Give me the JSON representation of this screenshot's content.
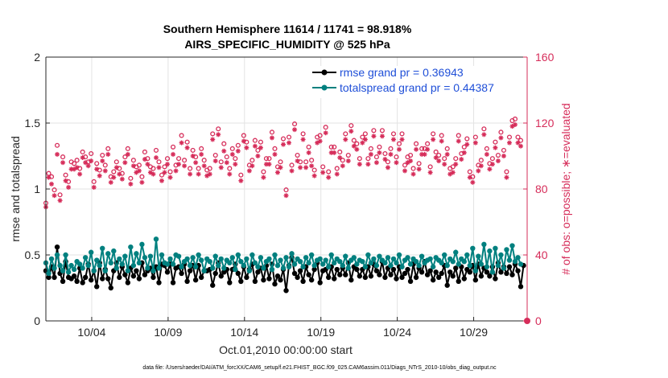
{
  "chart_data": {
    "type": "line",
    "title_line1": "Southern Hemisphere 11614 / 11741 = 98.918%",
    "title_line2": "AIRS_SPECIFIC_HUMIDITY @ 525 hPa",
    "xlabel": "Oct.01,2010 00:00:00 start",
    "ylabel_left": "rmse and totalspread",
    "ylabel_right": "# of obs: o=possible; ∗=evaluated",
    "xlim": [
      1,
      32.5
    ],
    "ylim_left": [
      0,
      2
    ],
    "ylim_right": [
      0,
      160
    ],
    "x_ticks": [
      4,
      9,
      14,
      19,
      24,
      29
    ],
    "x_tick_labels": [
      "10/04",
      "10/09",
      "10/14",
      "10/19",
      "10/24",
      "10/29"
    ],
    "y_ticks_left": [
      0,
      0.5,
      1,
      1.5,
      2
    ],
    "y_tick_labels_left": [
      "0",
      "0.5",
      "1",
      "1.5",
      "2"
    ],
    "y_ticks_right": [
      0,
      40,
      80,
      120,
      160
    ],
    "y_tick_labels_right": [
      "0",
      "40",
      "80",
      "120",
      "160"
    ],
    "grid": true,
    "legend_position": "top-right",
    "colors": {
      "rmse": "#000000",
      "spread": "#00807f",
      "obs": "#d62d5a",
      "legend_text": "#1f4fd8",
      "grid": "#e3e3e3"
    },
    "series": [
      {
        "name": "rmse grand pr = 0.36943",
        "axis": "left",
        "values": [
          0.38,
          0.33,
          0.41,
          0.33,
          0.56,
          0.36,
          0.3,
          0.45,
          0.33,
          0.32,
          0.34,
          0.3,
          0.4,
          0.29,
          0.33,
          0.43,
          0.31,
          0.38,
          0.26,
          0.44,
          0.32,
          0.39,
          0.32,
          0.25,
          0.38,
          0.44,
          0.33,
          0.41,
          0.35,
          0.29,
          0.4,
          0.34,
          0.38,
          0.32,
          0.44,
          0.35,
          0.38,
          0.4,
          0.33,
          0.41,
          0.29,
          0.43,
          0.42,
          0.37,
          0.43,
          0.29,
          0.4,
          0.41,
          0.36,
          0.43,
          0.3,
          0.38,
          0.42,
          0.31,
          0.42,
          0.33,
          0.38,
          0.38,
          0.39,
          0.27,
          0.36,
          0.44,
          0.34,
          0.37,
          0.39,
          0.29,
          0.39,
          0.43,
          0.36,
          0.3,
          0.41,
          0.33,
          0.39,
          0.43,
          0.3,
          0.37,
          0.4,
          0.31,
          0.42,
          0.32,
          0.43,
          0.28,
          0.34,
          0.31,
          0.39,
          0.23,
          0.42,
          0.48,
          0.36,
          0.33,
          0.38,
          0.3,
          0.41,
          0.35,
          0.31,
          0.39,
          0.44,
          0.29,
          0.38,
          0.39,
          0.33,
          0.41,
          0.32,
          0.39,
          0.35,
          0.4,
          0.35,
          0.44,
          0.31,
          0.41,
          0.39,
          0.34,
          0.39,
          0.33,
          0.41,
          0.34,
          0.43,
          0.38,
          0.35,
          0.45,
          0.33,
          0.4,
          0.35,
          0.39,
          0.32,
          0.41,
          0.33,
          0.36,
          0.39,
          0.3,
          0.43,
          0.33,
          0.4,
          0.37,
          0.45,
          0.35,
          0.38,
          0.31,
          0.37,
          0.33,
          0.36,
          0.42,
          0.27,
          0.37,
          0.34,
          0.4,
          0.3,
          0.41,
          0.32,
          0.39,
          0.37,
          0.42,
          0.31,
          0.43,
          0.34,
          0.4,
          0.37,
          0.34,
          0.41,
          0.32,
          0.44,
          0.37,
          0.41,
          0.36,
          0.41,
          0.35,
          0.43,
          0.38,
          0.26,
          0.42
        ]
      },
      {
        "name": "totalspread grand pr = 0.44387",
        "axis": "left",
        "values": [
          0.44,
          0.36,
          0.47,
          0.4,
          0.5,
          0.42,
          0.38,
          0.5,
          0.37,
          0.42,
          0.39,
          0.45,
          0.43,
          0.4,
          0.48,
          0.42,
          0.52,
          0.38,
          0.46,
          0.42,
          0.55,
          0.38,
          0.51,
          0.44,
          0.53,
          0.4,
          0.47,
          0.43,
          0.49,
          0.38,
          0.56,
          0.42,
          0.51,
          0.44,
          0.58,
          0.48,
          0.4,
          0.49,
          0.38,
          0.62,
          0.4,
          0.5,
          0.44,
          0.43,
          0.47,
          0.43,
          0.5,
          0.49,
          0.41,
          0.45,
          0.47,
          0.42,
          0.48,
          0.41,
          0.5,
          0.46,
          0.38,
          0.47,
          0.45,
          0.4,
          0.49,
          0.42,
          0.47,
          0.4,
          0.46,
          0.44,
          0.48,
          0.39,
          0.5,
          0.45,
          0.42,
          0.47,
          0.38,
          0.5,
          0.44,
          0.41,
          0.48,
          0.4,
          0.45,
          0.47,
          0.39,
          0.5,
          0.42,
          0.46,
          0.4,
          0.48,
          0.41,
          0.51,
          0.43,
          0.47,
          0.45,
          0.41,
          0.48,
          0.44,
          0.5,
          0.42,
          0.46,
          0.47,
          0.43,
          0.46,
          0.41,
          0.5,
          0.44,
          0.47,
          0.45,
          0.42,
          0.49,
          0.4,
          0.46,
          0.48,
          0.43,
          0.46,
          0.45,
          0.41,
          0.5,
          0.44,
          0.47,
          0.42,
          0.49,
          0.46,
          0.44,
          0.48,
          0.42,
          0.47,
          0.44,
          0.5,
          0.41,
          0.46,
          0.48,
          0.43,
          0.47,
          0.45,
          0.42,
          0.49,
          0.44,
          0.46,
          0.47,
          0.41,
          0.48,
          0.46,
          0.44,
          0.5,
          0.42,
          0.47,
          0.45,
          0.52,
          0.43,
          0.47,
          0.45,
          0.5,
          0.42,
          0.55,
          0.38,
          0.49,
          0.43,
          0.58,
          0.41,
          0.53,
          0.37,
          0.55,
          0.42,
          0.5,
          0.4,
          0.54,
          0.46,
          0.57,
          0.45,
          0.48,
          0.43
        ]
      },
      {
        "name": "obs possible (o)",
        "axis": "right",
        "values": [
          70,
          88,
          86,
          78,
          105,
          75,
          98,
          87,
          83,
          95,
          94,
          96,
          91,
          101,
          98,
          95,
          100,
          83,
          94,
          90,
          99,
          93,
          103,
          86,
          89,
          95,
          91,
          88,
          98,
          103,
          85,
          96,
          92,
          93,
          86,
          101,
          97,
          92,
          91,
          102,
          95,
          87,
          92,
          97,
          89,
          104,
          93,
          97,
          111,
          96,
          107,
          91,
          102,
          98,
          91,
          103,
          96,
          90,
          91,
          112,
          99,
          115,
          95,
          106,
          98,
          91,
          103,
          97,
          105,
          87,
          111,
          107,
          93,
          96,
          108,
          102,
          107,
          89,
          97,
          97,
          113,
          103,
          92,
          95,
          109,
          78,
          110,
          93,
          118,
          99,
          95,
          112,
          95,
          104,
          96,
          90,
          110,
          111,
          92,
          116,
          89,
          104,
          104,
          91,
          101,
          96,
          112,
          99,
          117,
          108,
          106,
          97,
          110,
          112,
          97,
          103,
          114,
          98,
          104,
          114,
          100,
          95,
          103,
          112,
          98,
          106,
          112,
          93,
          98,
          99,
          91,
          106,
          94,
          103,
          103,
          106,
          92,
          112,
          101,
          99,
          111,
          97,
          103,
          91,
          92,
          97,
          111,
          100,
          104,
          109,
          89,
          86,
          110,
          93,
          96,
          115,
          103,
          94,
          97,
          107,
          99,
          113,
          102,
          89,
          110,
          120,
          121,
          110,
          108
        ]
      },
      {
        "name": "obs evaluated (*)",
        "axis": "right",
        "values": [
          70,
          88,
          84,
          77,
          102,
          74,
          97,
          86,
          82,
          93,
          93,
          94,
          90,
          100,
          97,
          95,
          98,
          82,
          93,
          89,
          98,
          92,
          102,
          85,
          88,
          94,
          90,
          87,
          97,
          102,
          84,
          95,
          91,
          92,
          85,
          99,
          96,
          91,
          90,
          100,
          94,
          86,
          91,
          96,
          88,
          102,
          92,
          96,
          109,
          95,
          106,
          90,
          101,
          97,
          90,
          102,
          95,
          89,
          90,
          111,
          98,
          114,
          94,
          104,
          97,
          90,
          102,
          96,
          104,
          86,
          110,
          106,
          92,
          95,
          107,
          101,
          106,
          88,
          96,
          96,
          112,
          102,
          91,
          94,
          108,
          77,
          109,
          92,
          117,
          98,
          94,
          111,
          94,
          103,
          95,
          89,
          109,
          110,
          91,
          115,
          88,
          103,
          103,
          90,
          100,
          95,
          111,
          98,
          116,
          107,
          105,
          96,
          109,
          111,
          96,
          102,
          113,
          97,
          103,
          113,
          99,
          94,
          102,
          111,
          97,
          105,
          111,
          92,
          97,
          98,
          90,
          105,
          93,
          102,
          102,
          105,
          91,
          111,
          100,
          98,
          110,
          96,
          102,
          90,
          91,
          96,
          110,
          99,
          103,
          108,
          88,
          85,
          109,
          92,
          95,
          114,
          102,
          93,
          96,
          106,
          98,
          112,
          101,
          88,
          109,
          119,
          120,
          109,
          107
        ]
      }
    ],
    "right_axis_end_marker": 0
  },
  "footnote": "data file: /Users/raeder/DAI/ATM_forcXX/CAM6_setup/f.e21.FHIST_BGC.f09_025.CAM6assim.011/Diags_NTrS_2010-10/obs_diag_output.nc"
}
